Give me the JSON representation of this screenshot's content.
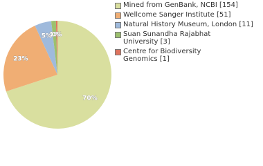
{
  "chart_data": {
    "type": "pie",
    "series": [
      {
        "name": "Mined from GenBank, NCBI [154]",
        "color": "#d9df9f"
      },
      {
        "name": "Wellcome Sanger Institute [51]",
        "color": "#f0ae74"
      },
      {
        "name": "Natural History Museum, London [11]",
        "color": "#9fbadc"
      },
      {
        "name": "Suan Sunandha Rajabhat\nUniversity [3]",
        "color": "#9cc06e"
      },
      {
        "name": "Centre for Biodiversity\nGenomics [1]",
        "color": "#df735e"
      }
    ],
    "values": [
      70,
      23.2,
      5,
      1.4,
      0.45
    ],
    "value_labels": [
      "70%",
      "23%",
      "5%",
      "1%",
      "0%"
    ]
  }
}
